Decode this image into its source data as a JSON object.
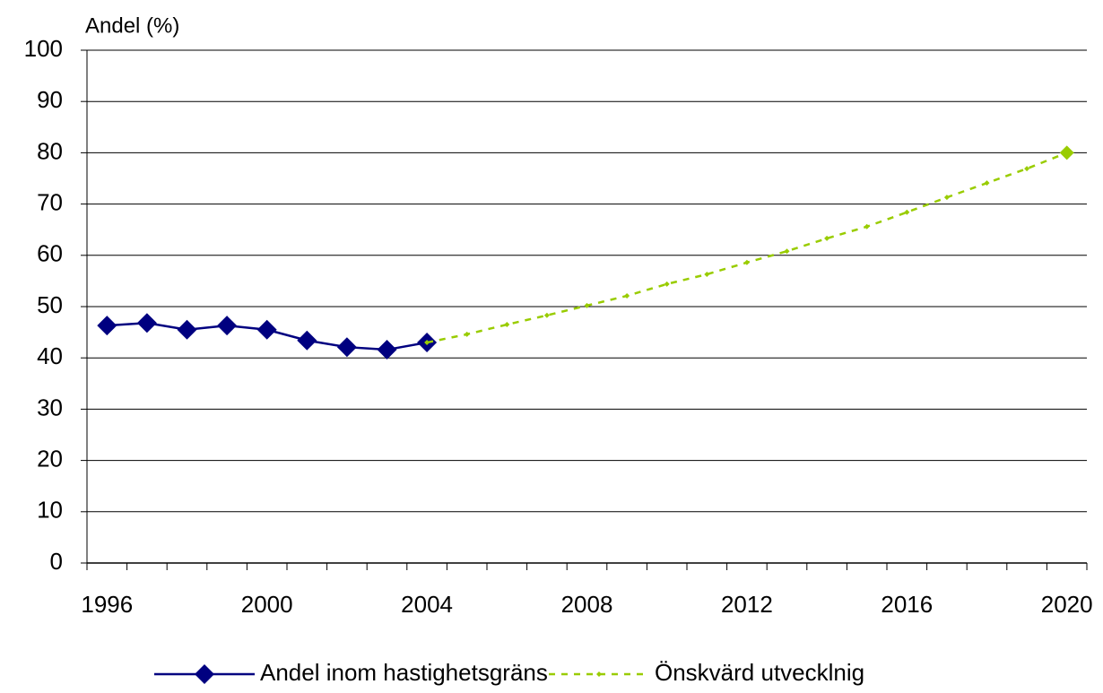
{
  "chart_data": {
    "type": "line",
    "y_label": "Andel (%)",
    "categories": [
      "1996",
      null,
      null,
      null,
      "2000",
      null,
      null,
      null,
      "2004",
      null,
      null,
      null,
      "2008",
      null,
      null,
      null,
      "2012",
      null,
      null,
      null,
      "2016",
      null,
      null,
      null,
      "2020"
    ],
    "series": [
      {
        "name": "Andel inom hastighetsgräns",
        "color": "#000080",
        "values": [
          46.3,
          46.8,
          45.5,
          46.3,
          45.5,
          43.4,
          42.1,
          41.6,
          43.0,
          null,
          null,
          null,
          null,
          null,
          null,
          null,
          null,
          null,
          null,
          null,
          null,
          null,
          null,
          null,
          null
        ]
      },
      {
        "name": "Önskvärd utvecklnig",
        "color": "#99cc00",
        "values": [
          null,
          null,
          null,
          null,
          null,
          null,
          null,
          null,
          43.0,
          44.6,
          46.5,
          48.3,
          50.2,
          52.1,
          54.4,
          56.3,
          58.6,
          60.8,
          63.3,
          65.6,
          68.4,
          71.3,
          74.1,
          76.9,
          80
        ]
      }
    ],
    "ylim": [
      0,
      100
    ],
    "yticks": [
      0,
      10,
      20,
      30,
      40,
      50,
      60,
      70,
      80,
      90,
      100
    ],
    "grid": true
  }
}
